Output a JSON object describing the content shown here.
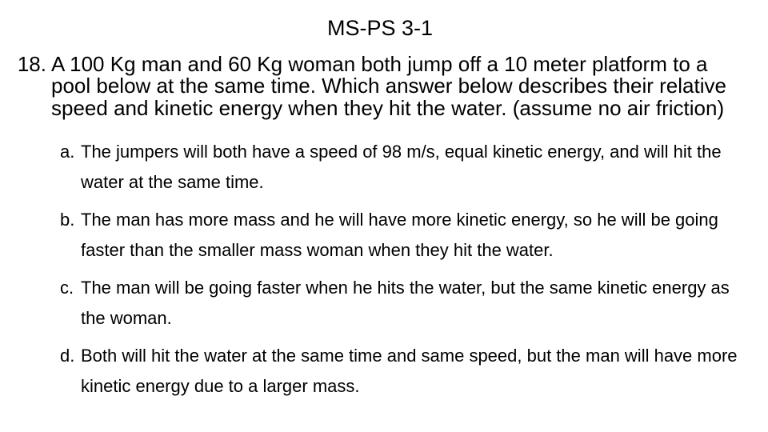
{
  "title": "MS-PS 3-1",
  "question": {
    "number": "18.",
    "text": "A 100 Kg man and 60 Kg woman both jump off a 10 meter platform to a pool below at the same time.  Which answer below describes their relative speed and kinetic energy when they hit the water.  (assume no air friction)"
  },
  "options": [
    {
      "letter": "a.",
      "text": "The jumpers will both have a speed of 98 m/s, equal kinetic energy, and will hit the water at the same time."
    },
    {
      "letter": "b.",
      "text": "The man has more mass and he will have more kinetic energy, so he will be going faster than the smaller mass woman when they hit the water."
    },
    {
      "letter": "c.",
      "text": "The man will be going faster when he hits the water, but the same kinetic energy as the woman."
    },
    {
      "letter": "d.",
      "text": "Both will hit the water at the same time and same speed, but the man will have more kinetic energy due to a larger mass."
    }
  ],
  "style": {
    "background_color": "#ffffff",
    "text_color": "#000000",
    "title_font": "Comic Sans MS",
    "title_fontsize_pt": 20,
    "question_font": "Comic Sans MS",
    "question_fontsize_pt": 20,
    "option_font": "Arial",
    "option_fontsize_pt": 17,
    "option_line_height": 1.75
  }
}
